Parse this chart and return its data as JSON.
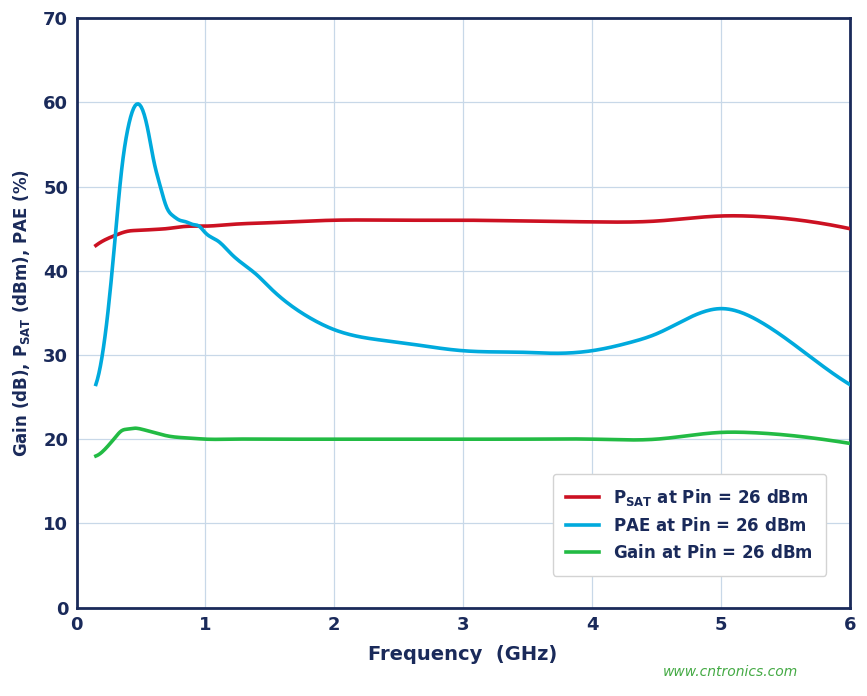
{
  "xlabel": "Frequency  (GHz)",
  "ylabel": "Gain (dB), $P_{SAT}$ (dBm), PAE (%)",
  "xlim": [
    0,
    6
  ],
  "ylim": [
    0,
    70
  ],
  "xticks": [
    0,
    1,
    2,
    3,
    4,
    5,
    6
  ],
  "yticks": [
    0,
    10,
    20,
    30,
    40,
    50,
    60,
    70
  ],
  "outer_bg_color": "#ffffff",
  "plot_bg_color": "#ffffff",
  "grid_color": "#c8d8e8",
  "border_color": "#1a2a5a",
  "psat_color": "#cc1122",
  "pae_color": "#00aadd",
  "gain_color": "#22bb44",
  "line_width": 2.6,
  "legend_text_color": "#1a2a5a",
  "watermark": "www.cntronics.com",
  "watermark_color": "#44aa44",
  "psat_x": [
    0.15,
    0.2,
    0.3,
    0.4,
    0.5,
    0.55,
    0.6,
    0.7,
    0.8,
    0.9,
    1.0,
    1.2,
    1.5,
    2.0,
    2.5,
    3.0,
    3.5,
    4.0,
    4.5,
    5.0,
    5.2,
    5.5,
    6.0
  ],
  "psat_y": [
    43.0,
    43.5,
    44.2,
    44.7,
    44.8,
    44.85,
    44.9,
    45.0,
    45.2,
    45.3,
    45.3,
    45.5,
    45.7,
    46.0,
    46.0,
    46.0,
    45.9,
    45.8,
    45.9,
    46.5,
    46.5,
    46.2,
    45.0
  ],
  "pae_x": [
    0.15,
    0.2,
    0.25,
    0.3,
    0.35,
    0.4,
    0.45,
    0.5,
    0.55,
    0.6,
    0.65,
    0.7,
    0.75,
    0.8,
    0.85,
    0.9,
    0.95,
    1.0,
    1.1,
    1.2,
    1.4,
    1.5,
    1.8,
    2.0,
    2.5,
    3.0,
    3.5,
    3.7,
    4.0,
    4.3,
    4.5,
    5.0,
    5.3,
    5.5,
    6.0
  ],
  "pae_y": [
    26.5,
    30.0,
    36.0,
    44.0,
    52.0,
    57.0,
    59.5,
    59.5,
    57.0,
    53.0,
    50.0,
    47.5,
    46.5,
    46.0,
    45.8,
    45.5,
    45.3,
    44.5,
    43.5,
    42.0,
    39.5,
    38.0,
    34.5,
    33.0,
    31.5,
    30.5,
    30.3,
    30.2,
    30.5,
    31.5,
    32.5,
    35.5,
    34.0,
    32.0,
    26.5
  ],
  "gain_x": [
    0.15,
    0.2,
    0.25,
    0.3,
    0.35,
    0.4,
    0.45,
    0.5,
    0.55,
    0.6,
    0.7,
    0.8,
    0.9,
    1.0,
    1.2,
    1.5,
    2.0,
    2.5,
    3.0,
    3.5,
    4.0,
    4.5,
    5.0,
    5.2,
    5.5,
    6.0
  ],
  "gain_y": [
    18.0,
    18.5,
    19.3,
    20.2,
    21.0,
    21.2,
    21.3,
    21.2,
    21.0,
    20.8,
    20.4,
    20.2,
    20.1,
    20.0,
    20.0,
    20.0,
    20.0,
    20.0,
    20.0,
    20.0,
    20.0,
    20.0,
    20.8,
    20.8,
    20.5,
    19.5
  ]
}
